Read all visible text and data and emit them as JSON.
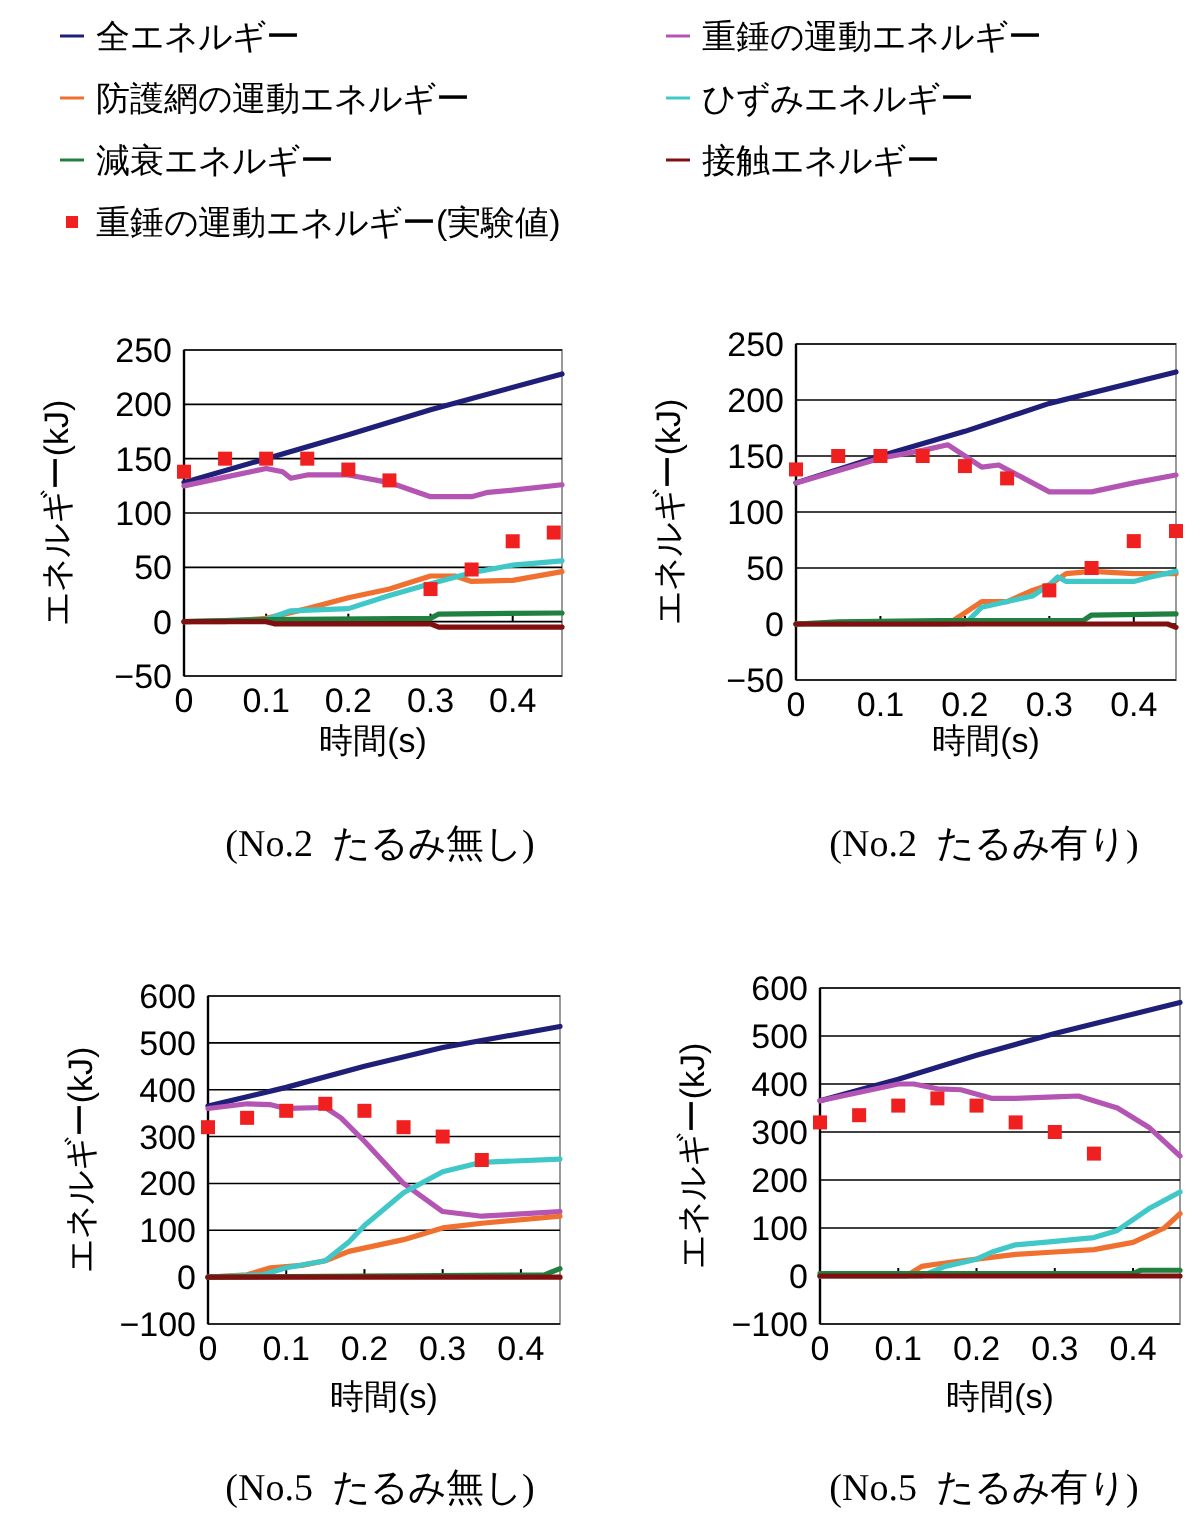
{
  "chart_data": [
    {
      "type": "line",
      "title": "(No.2  たるみ無し)",
      "xlabel": "時間(s)",
      "ylabel": "エネルギー(kJ)",
      "xlim": [
        0,
        0.46
      ],
      "ylim": [
        -50,
        250
      ],
      "xticks": [
        0,
        0.1,
        0.2,
        0.3,
        0.4
      ],
      "yticks": [
        -50,
        0,
        50,
        100,
        150,
        200,
        250
      ],
      "grid": "y",
      "legend": "top",
      "series": [
        {
          "name": "全エネルギー",
          "color": "#1f1f7a",
          "x": [
            0,
            0.1,
            0.2,
            0.3,
            0.46
          ],
          "values": [
            128,
            150,
            172,
            195,
            228
          ]
        },
        {
          "name": "重錘の運動エネルギー",
          "color": "#b455b4",
          "x": [
            0,
            0.05,
            0.1,
            0.12,
            0.13,
            0.15,
            0.2,
            0.25,
            0.3,
            0.35,
            0.37,
            0.4,
            0.46
          ],
          "values": [
            125,
            133,
            141,
            138,
            132,
            135,
            135,
            128,
            115,
            115,
            119,
            121,
            126
          ]
        },
        {
          "name": "防護網の運動エネルギー",
          "color": "#f07030",
          "x": [
            0,
            0.05,
            0.1,
            0.15,
            0.2,
            0.25,
            0.3,
            0.33,
            0.35,
            0.4,
            0.46
          ],
          "values": [
            0,
            0,
            3,
            12,
            22,
            30,
            42,
            42,
            37,
            38,
            46
          ]
        },
        {
          "name": "ひずみエネルギー",
          "color": "#40c8c8",
          "x": [
            0,
            0.1,
            0.13,
            0.2,
            0.25,
            0.3,
            0.35,
            0.4,
            0.46
          ],
          "values": [
            0,
            2,
            10,
            12,
            24,
            35,
            45,
            52,
            56
          ]
        },
        {
          "name": "減衰エネルギー",
          "color": "#208040",
          "x": [
            0,
            0.1,
            0.3,
            0.31,
            0.46
          ],
          "values": [
            0,
            2,
            3,
            7,
            8
          ]
        },
        {
          "name": "接触エネルギー",
          "color": "#801010",
          "x": [
            0,
            0.1,
            0.11,
            0.3,
            0.31,
            0.46
          ],
          "values": [
            0,
            0,
            -2,
            -2,
            -5,
            -5
          ]
        },
        {
          "name": "重錘の運動エネルギー(実験値)",
          "type": "scatter",
          "marker": "square",
          "color": "#f02020",
          "x": [
            0,
            0.05,
            0.1,
            0.15,
            0.2,
            0.25,
            0.3,
            0.35,
            0.4,
            0.45
          ],
          "values": [
            138,
            150,
            150,
            150,
            140,
            130,
            30,
            48,
            74,
            82
          ]
        }
      ]
    },
    {
      "type": "line",
      "title": "(No.2  たるみ有り)",
      "xlabel": "時間(s)",
      "ylabel": "エネルギー(kJ)",
      "xlim": [
        0,
        0.45
      ],
      "ylim": [
        -50,
        250
      ],
      "xticks": [
        0,
        0.1,
        0.2,
        0.3,
        0.4
      ],
      "yticks": [
        -50,
        0,
        50,
        100,
        150,
        200,
        250
      ],
      "grid": "y",
      "series": [
        {
          "color": "#1f1f7a",
          "x": [
            0,
            0.1,
            0.2,
            0.3,
            0.45
          ],
          "values": [
            126,
            150,
            172,
            197,
            225
          ]
        },
        {
          "color": "#b455b4",
          "x": [
            0,
            0.1,
            0.15,
            0.18,
            0.2,
            0.22,
            0.24,
            0.27,
            0.3,
            0.35,
            0.4,
            0.45
          ],
          "values": [
            126,
            148,
            155,
            160,
            150,
            140,
            142,
            130,
            118,
            118,
            126,
            133
          ]
        },
        {
          "color": "#f07030",
          "x": [
            0,
            0.18,
            0.2,
            0.22,
            0.25,
            0.28,
            0.3,
            0.32,
            0.35,
            0.4,
            0.45
          ],
          "values": [
            0,
            0,
            10,
            20,
            20,
            30,
            35,
            45,
            47,
            45,
            45
          ]
        },
        {
          "color": "#40c8c8",
          "x": [
            0,
            0.2,
            0.22,
            0.28,
            0.3,
            0.31,
            0.32,
            0.4,
            0.42,
            0.45
          ],
          "values": [
            0,
            0,
            15,
            25,
            35,
            42,
            38,
            38,
            42,
            47
          ]
        },
        {
          "color": "#208040",
          "x": [
            0,
            0.05,
            0.17,
            0.34,
            0.35,
            0.45
          ],
          "values": [
            0,
            2,
            3,
            3,
            8,
            9
          ]
        },
        {
          "color": "#801010",
          "x": [
            0,
            0.44,
            0.45
          ],
          "values": [
            0,
            0,
            -3
          ]
        },
        {
          "type": "scatter",
          "marker": "square",
          "color": "#f02020",
          "x": [
            0,
            0.05,
            0.1,
            0.15,
            0.2,
            0.25,
            0.3,
            0.35,
            0.4,
            0.45
          ],
          "values": [
            138,
            150,
            150,
            150,
            141,
            130,
            30,
            50,
            74,
            83
          ]
        }
      ]
    },
    {
      "type": "line",
      "title": "(No.5  たるみ無し)",
      "xlabel": "時間(s)",
      "ylabel": "エネルギー(kJ)",
      "xlim": [
        0,
        0.45
      ],
      "ylim": [
        -100,
        600
      ],
      "xticks": [
        0,
        0.1,
        0.2,
        0.3,
        0.4
      ],
      "yticks": [
        -100,
        0,
        100,
        200,
        300,
        400,
        500,
        600
      ],
      "grid": "y",
      "series": [
        {
          "color": "#1f1f7a",
          "x": [
            0,
            0.1,
            0.2,
            0.3,
            0.45
          ],
          "values": [
            365,
            405,
            450,
            490,
            535
          ]
        },
        {
          "color": "#b455b4",
          "x": [
            0,
            0.05,
            0.08,
            0.1,
            0.15,
            0.17,
            0.2,
            0.25,
            0.3,
            0.35,
            0.45
          ],
          "values": [
            360,
            370,
            368,
            360,
            362,
            340,
            290,
            200,
            140,
            130,
            140
          ]
        },
        {
          "color": "#f07030",
          "x": [
            0,
            0.05,
            0.08,
            0.12,
            0.15,
            0.18,
            0.25,
            0.3,
            0.35,
            0.45
          ],
          "values": [
            0,
            5,
            20,
            25,
            35,
            55,
            80,
            105,
            115,
            130
          ]
        },
        {
          "color": "#40c8c8",
          "x": [
            0,
            0.07,
            0.1,
            0.15,
            0.18,
            0.2,
            0.25,
            0.3,
            0.35,
            0.45
          ],
          "values": [
            0,
            5,
            20,
            35,
            75,
            110,
            180,
            225,
            245,
            252
          ]
        },
        {
          "color": "#208040",
          "x": [
            0,
            0.43,
            0.45
          ],
          "values": [
            0,
            5,
            18
          ]
        },
        {
          "color": "#801010",
          "x": [
            0,
            0.45
          ],
          "values": [
            0,
            0
          ]
        },
        {
          "type": "scatter",
          "marker": "square",
          "color": "#f02020",
          "x": [
            0,
            0.05,
            0.1,
            0.15,
            0.2,
            0.25,
            0.3,
            0.35
          ],
          "values": [
            320,
            340,
            355,
            370,
            355,
            320,
            300,
            250
          ]
        }
      ]
    },
    {
      "type": "line",
      "title": "(No.5  たるみ有り)",
      "xlabel": "時間(s)",
      "ylabel": "エネルギー(kJ)",
      "xlim": [
        0,
        0.46
      ],
      "ylim": [
        -100,
        600
      ],
      "xticks": [
        0,
        0.1,
        0.2,
        0.3,
        0.4
      ],
      "yticks": [
        -100,
        0,
        100,
        200,
        300,
        400,
        500,
        600
      ],
      "grid": "y",
      "series": [
        {
          "color": "#1f1f7a",
          "x": [
            0,
            0.1,
            0.2,
            0.3,
            0.46
          ],
          "values": [
            365,
            410,
            460,
            505,
            570
          ]
        },
        {
          "color": "#b455b4",
          "x": [
            0,
            0.1,
            0.12,
            0.15,
            0.18,
            0.22,
            0.25,
            0.3,
            0.33,
            0.38,
            0.42,
            0.46
          ],
          "values": [
            365,
            400,
            400,
            390,
            388,
            370,
            370,
            373,
            375,
            350,
            310,
            250
          ]
        },
        {
          "color": "#f07030",
          "x": [
            0,
            0.11,
            0.13,
            0.15,
            0.2,
            0.25,
            0.3,
            0.35,
            0.4,
            0.44,
            0.46
          ],
          "values": [
            0,
            0,
            20,
            25,
            35,
            45,
            50,
            55,
            70,
            100,
            130
          ]
        },
        {
          "color": "#40c8c8",
          "x": [
            0,
            0.13,
            0.16,
            0.2,
            0.22,
            0.25,
            0.3,
            0.35,
            0.38,
            0.42,
            0.46
          ],
          "values": [
            0,
            0,
            20,
            35,
            50,
            65,
            72,
            80,
            95,
            140,
            175
          ]
        },
        {
          "color": "#208040",
          "x": [
            0,
            0.25,
            0.4,
            0.41,
            0.46
          ],
          "values": [
            5,
            5,
            5,
            12,
            12
          ]
        },
        {
          "color": "#801010",
          "x": [
            0,
            0.46
          ],
          "values": [
            0,
            0
          ]
        },
        {
          "type": "scatter",
          "marker": "square",
          "color": "#f02020",
          "x": [
            0,
            0.05,
            0.1,
            0.15,
            0.2,
            0.25,
            0.3,
            0.35
          ],
          "values": [
            320,
            335,
            355,
            370,
            355,
            320,
            300,
            255
          ]
        }
      ]
    }
  ]
}
